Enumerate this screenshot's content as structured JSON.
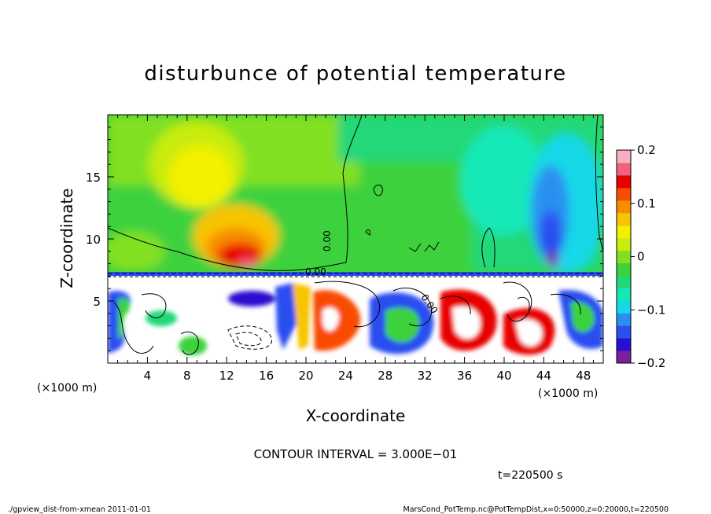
{
  "chart_data": {
    "type": "heatmap",
    "title": "disturbunce of potential temperature",
    "xlabel": "X-coordinate",
    "ylabel": "Z-coordinate",
    "x_unit": "(×1000 m)",
    "xlim": [
      0,
      50
    ],
    "ylim": [
      0,
      20
    ],
    "x_ticks": [
      4,
      8,
      12,
      16,
      20,
      24,
      28,
      32,
      36,
      40,
      44,
      48
    ],
    "y_ticks": [
      5,
      10,
      15
    ],
    "colorbar": {
      "range": [
        -0.2,
        0.2
      ],
      "ticks": [
        "0.2",
        "0.1",
        "0",
        "−0.1",
        "−0.2"
      ],
      "colors": [
        "#7a1fa2",
        "#2a0fd0",
        "#2a4ef0",
        "#2a90f0",
        "#18d8e8",
        "#14e8b8",
        "#20d878",
        "#3cd23c",
        "#82e020",
        "#c8ec10",
        "#f4f000",
        "#f8c400",
        "#f88c00",
        "#f84c00",
        "#e80000",
        "#f06080",
        "#f8b0c0"
      ]
    },
    "contour_label": "0.00",
    "contour_interval_text": "CONTOUR INTERVAL = 3.000E−01",
    "time_label": "t=220500 s",
    "footer_left": "./gpview_dist-from-xmean   2011-01-01",
    "footer_right": "MarsCond_PotTemp.nc@PotTempDist,x=0:50000,z=0:20000,t=220500"
  }
}
